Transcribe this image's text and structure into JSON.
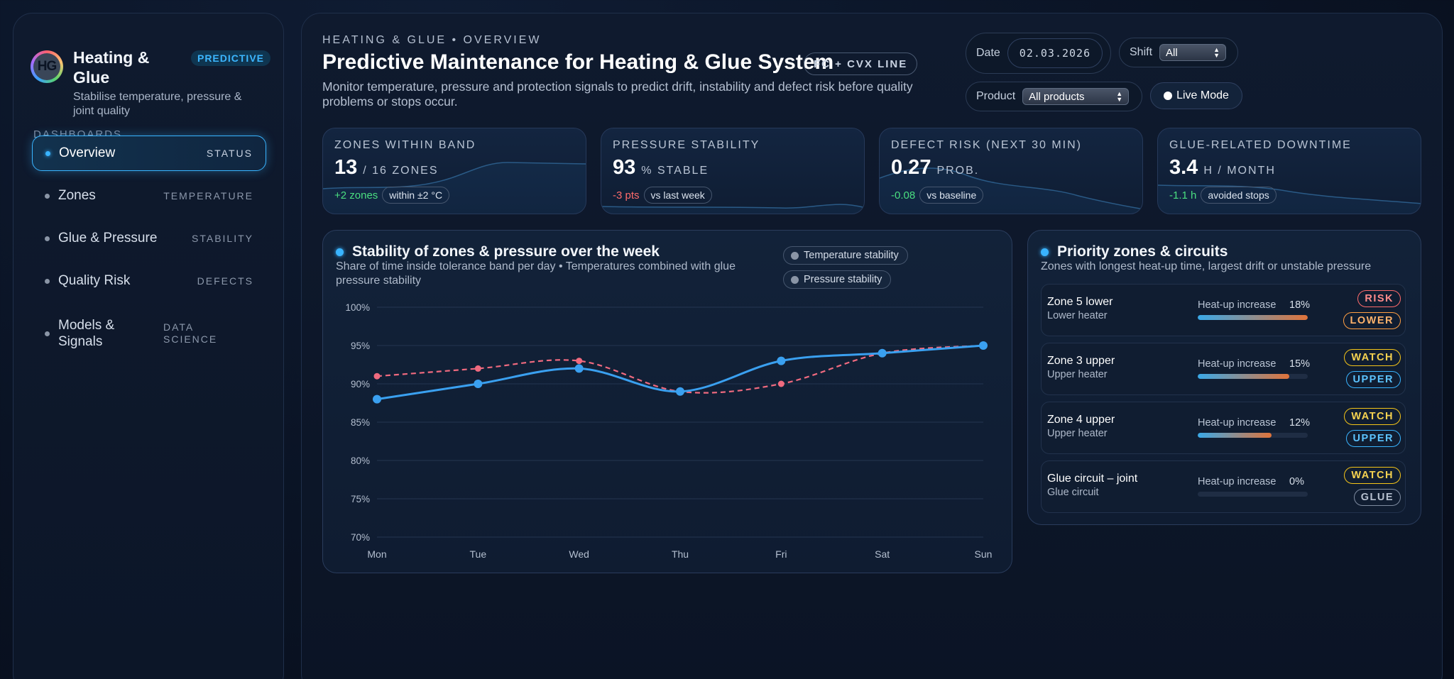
{
  "sidebar": {
    "logo_text": "HG",
    "title": "Heating & Glue",
    "subtitle": "Stabilise temperature, pressure & joint quality",
    "badge": "PREDICTIVE",
    "section_label": "DASHBOARDS",
    "items": [
      {
        "label": "Overview",
        "tag": "STATUS"
      },
      {
        "label": "Zones",
        "tag": "TEMPERATURE"
      },
      {
        "label": "Glue & Pressure",
        "tag": "STABILITY"
      },
      {
        "label": "Quality Risk",
        "tag": "DEFECTS"
      },
      {
        "label": "Models & Signals",
        "tag": "DATA SCIENCE"
      }
    ]
  },
  "header": {
    "eyebrow": "HEATING & GLUE • OVERVIEW",
    "title": "Predictive Maintenance for Heating & Glue System",
    "line_badge": "FC + CVX LINE",
    "description": "Monitor temperature, pressure and protection signals to predict drift, instability and defect risk before quality problems or stops occur."
  },
  "controls": {
    "date_label": "Date",
    "date_value": "02.03.2026",
    "shift_label": "Shift",
    "shift_value": "All",
    "product_label": "Product",
    "product_value": "All products",
    "live_label": "Live Mode"
  },
  "kpis": [
    {
      "label": "ZONES WITHIN BAND",
      "value": "13",
      "unit": "/ 16 ZONES",
      "delta": "+2 zones",
      "delta_type": "pos",
      "pill": "within ±2 °C"
    },
    {
      "label": "PRESSURE STABILITY",
      "value": "93",
      "unit": "% STABLE",
      "delta": "-3 pts",
      "delta_type": "neg",
      "pill": "vs last week"
    },
    {
      "label": "DEFECT RISK (NEXT 30 MIN)",
      "value": "0.27",
      "unit": "PROB.",
      "delta": "-0.08",
      "delta_type": "pos",
      "pill": "vs baseline"
    },
    {
      "label": "GLUE-RELATED DOWNTIME",
      "value": "3.4",
      "unit": "H / MONTH",
      "delta": "-1.1 h",
      "delta_type": "pos",
      "pill": "avoided stops"
    }
  ],
  "stability_chart": {
    "title": "Stability of zones & pressure over the week",
    "subtitle": "Share of time inside tolerance band per day • Temperatures combined with glue pressure stability",
    "legend": [
      "Temperature stability",
      "Pressure stability"
    ]
  },
  "chart_data": {
    "type": "line",
    "title": "Stability of zones & pressure over the week",
    "xlabel": "",
    "ylabel": "",
    "categories": [
      "Mon",
      "Tue",
      "Wed",
      "Thu",
      "Fri",
      "Sat",
      "Sun"
    ],
    "yticks": [
      "100%",
      "95%",
      "90%",
      "85%",
      "80%",
      "75%",
      "70%"
    ],
    "ylim": [
      70,
      100
    ],
    "series": [
      {
        "name": "Temperature stability",
        "color": "#3aa0f0",
        "style": "solid",
        "values": [
          88,
          90,
          92,
          89,
          93,
          94,
          95
        ]
      },
      {
        "name": "Pressure stability",
        "color": "#f06a7f",
        "style": "dashed",
        "values": [
          91,
          92,
          93,
          89,
          90,
          94,
          95
        ]
      }
    ]
  },
  "priority": {
    "title": "Priority zones & circuits",
    "subtitle": "Zones with longest heat-up time, largest drift or unstable pressure",
    "heat_label": "Heat-up increase",
    "rows": [
      {
        "name": "Zone 5 lower",
        "type": "Lower heater",
        "pct": "18%",
        "fill": 1.0,
        "tags": [
          "RISK",
          "LOWER"
        ],
        "tag_styles": [
          "risk",
          "lower"
        ]
      },
      {
        "name": "Zone 3 upper",
        "type": "Upper heater",
        "pct": "15%",
        "fill": 0.83,
        "tags": [
          "WATCH",
          "UPPER"
        ],
        "tag_styles": [
          "watch",
          "upper"
        ]
      },
      {
        "name": "Zone 4 upper",
        "type": "Upper heater",
        "pct": "12%",
        "fill": 0.67,
        "tags": [
          "WATCH",
          "UPPER"
        ],
        "tag_styles": [
          "watch",
          "upper"
        ]
      },
      {
        "name": "Glue circuit – joint",
        "type": "Glue circuit",
        "pct": "0%",
        "fill": 0.0,
        "tags": [
          "WATCH",
          "GLUE"
        ],
        "tag_styles": [
          "watch",
          "glue"
        ]
      }
    ]
  }
}
